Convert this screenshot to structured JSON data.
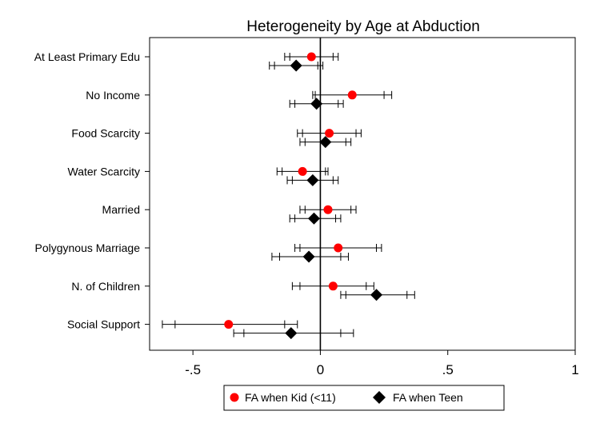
{
  "chart_data": {
    "type": "scatter",
    "title": "Heterogeneity by Age at Abduction",
    "xlabel": "",
    "ylabel": "",
    "xlim": [
      -0.67,
      1.0
    ],
    "xticks": [
      -0.5,
      0,
      0.5,
      1
    ],
    "xtick_labels": [
      "-.5",
      "0",
      ".5",
      "1"
    ],
    "reference_line_x": 0,
    "grid": false,
    "legend_position": "bottom",
    "categories": [
      "At Least Primary Edu",
      "No Income",
      "Food Scarcity",
      "Water Scarcity",
      "Married",
      "Polygynous Marriage",
      "N. of Children",
      "Social Support"
    ],
    "series": [
      {
        "name": "FA when Kid (<11)",
        "marker": "circle",
        "color": "#ff0000",
        "values": [
          -0.035,
          0.125,
          0.035,
          -0.07,
          0.03,
          0.07,
          0.05,
          -0.36
        ],
        "ci_inner": [
          [
            -0.12,
            0.05
          ],
          [
            -0.02,
            0.25
          ],
          [
            -0.07,
            0.14
          ],
          [
            -0.15,
            0.02
          ],
          [
            -0.06,
            0.12
          ],
          [
            -0.08,
            0.22
          ],
          [
            -0.08,
            0.18
          ],
          [
            -0.57,
            -0.14
          ]
        ],
        "ci_outer": [
          [
            -0.14,
            0.07
          ],
          [
            -0.03,
            0.28
          ],
          [
            -0.09,
            0.16
          ],
          [
            -0.17,
            0.03
          ],
          [
            -0.08,
            0.14
          ],
          [
            -0.1,
            0.24
          ],
          [
            -0.11,
            0.21
          ],
          [
            -0.62,
            -0.09
          ]
        ]
      },
      {
        "name": "FA when Teen",
        "marker": "diamond",
        "color": "#000000",
        "values": [
          -0.095,
          -0.015,
          0.02,
          -0.03,
          -0.025,
          -0.045,
          0.22,
          -0.115
        ],
        "ci_inner": [
          [
            -0.18,
            -0.01
          ],
          [
            -0.1,
            0.07
          ],
          [
            -0.06,
            0.1
          ],
          [
            -0.11,
            0.05
          ],
          [
            -0.1,
            0.06
          ],
          [
            -0.16,
            0.08
          ],
          [
            0.1,
            0.34
          ],
          [
            -0.3,
            0.08
          ]
        ],
        "ci_outer": [
          [
            -0.2,
            0.01
          ],
          [
            -0.12,
            0.09
          ],
          [
            -0.08,
            0.12
          ],
          [
            -0.13,
            0.07
          ],
          [
            -0.12,
            0.08
          ],
          [
            -0.19,
            0.11
          ],
          [
            0.08,
            0.37
          ],
          [
            -0.34,
            0.13
          ]
        ]
      }
    ]
  }
}
